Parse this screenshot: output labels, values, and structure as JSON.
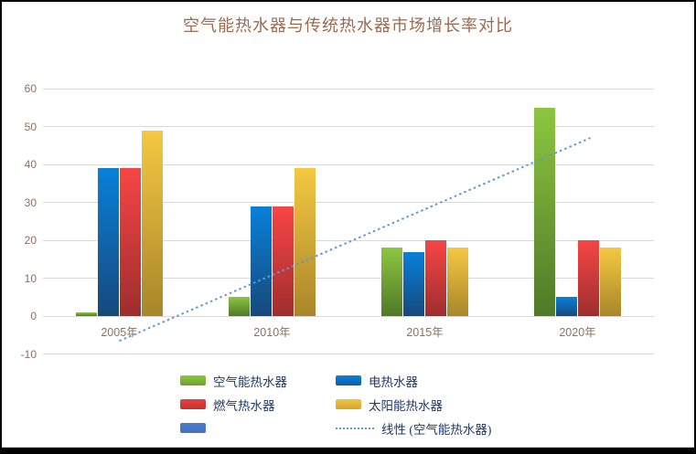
{
  "title": "空气能热水器与传统热水器市场增长率对比",
  "colors": {
    "title_text": "#9B6A50",
    "axis_label_text": "#8E7060",
    "legend_text": "#1F3864",
    "gridline": "#D9D9D9",
    "trendline": "#5B9BD5",
    "background": "#FFFFFF",
    "frame": "#000000"
  },
  "chart_data": {
    "type": "bar",
    "title": "空气能热水器与传统热水器市场增长率对比",
    "categories": [
      "2005年",
      "2010年",
      "2015年",
      "2020年"
    ],
    "series": [
      {
        "name": "空气能热水器",
        "values": [
          1,
          5,
          18,
          55
        ],
        "color_top": "#8DC63F",
        "color_bottom": "#4F7928"
      },
      {
        "name": "电热水器",
        "values": [
          39,
          29,
          17,
          5
        ],
        "color_top": "#0980DA",
        "color_bottom": "#17497B"
      },
      {
        "name": "燃气热水器",
        "values": [
          39,
          29,
          20,
          20
        ],
        "color_top": "#F74545",
        "color_bottom": "#9E2E2E"
      },
      {
        "name": "太阳能热水器",
        "values": [
          49,
          39,
          18,
          18
        ],
        "color_top": "#F5C842",
        "color_bottom": "#A8862A"
      },
      {
        "name": "",
        "values": [
          null,
          null,
          null,
          null
        ],
        "color_top": "#4A7CC7",
        "color_bottom": "#4472C4"
      }
    ],
    "trendline": {
      "label": "线性 (空气能热水器)",
      "applies_to_series": "空气能热水器",
      "style": "dotted",
      "color": "#5B9BD5",
      "start_value": -6.5,
      "end_value": 47
    },
    "y_axis": {
      "min": -10,
      "max": 60,
      "step": 10,
      "ticks": [
        60,
        50,
        40,
        30,
        20,
        10,
        0,
        -10
      ]
    },
    "xlabel": "",
    "ylabel": "",
    "grid": true,
    "legend_position": "bottom"
  },
  "legend": {
    "entries": [
      {
        "label": "空气能热水器",
        "type": "bar",
        "color_top": "#8DC63F",
        "color_bottom": "#6FA02F"
      },
      {
        "label": "电热水器",
        "type": "bar",
        "color_top": "#0980DA",
        "color_bottom": "#0E5DA8"
      },
      {
        "label": "燃气热水器",
        "type": "bar",
        "color_top": "#E84242",
        "color_bottom": "#C22F2F"
      },
      {
        "label": "太阳能热水器",
        "type": "bar",
        "color_top": "#F2C63E",
        "color_bottom": "#D3A32E"
      },
      {
        "label": "",
        "type": "bar",
        "color_top": "#4A7CC7",
        "color_bottom": "#4472C4"
      },
      {
        "label": "线性 (空气能热水器)",
        "type": "line",
        "color": "#5B9BD5"
      }
    ]
  }
}
